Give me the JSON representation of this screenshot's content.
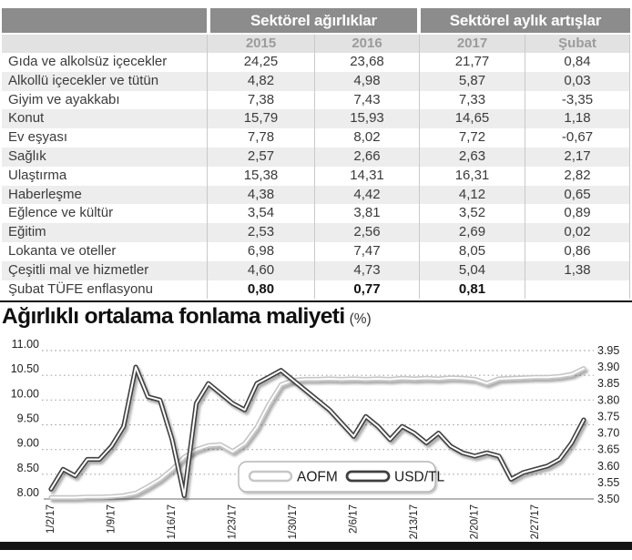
{
  "page": {
    "chart_title": "Ağırlıklı ortalama fonlama maliyeti",
    "chart_title_unit": "(%)"
  },
  "colors": {
    "header_bg": "#8c8c8c",
    "subheader_bg": "#e2e2e2",
    "subheader_text": "#9b9b9b",
    "stripe": "#ededed",
    "sep": "#c9c9c9",
    "text": "#3b3b3b",
    "bar": "#151515",
    "aofm_line": "#c6c6c6",
    "usdtl_line": "#3f3f3f",
    "grid_line": "#a8a8a8",
    "axis_line": "#8a8a8a",
    "axis_text": "#222222"
  },
  "chart_data": [
    {
      "type": "table",
      "col_groups": [
        "Sektörel ağırlıklar",
        "Sektörel aylık artışlar"
      ],
      "columns": [
        "2015",
        "2016",
        "2017",
        "Şubat"
      ],
      "rows": [
        {
          "label": "Gıda ve alkolsüz içecekler",
          "values": [
            "24,25",
            "23,68",
            "21,77",
            "0,84"
          ],
          "bold": false
        },
        {
          "label": "Alkollü içecekler ve tütün",
          "values": [
            "4,82",
            "4,98",
            "5,87",
            "0,03"
          ],
          "bold": false
        },
        {
          "label": "Giyim ve ayakkabı",
          "values": [
            "7,38",
            "7,43",
            "7,33",
            "-3,35"
          ],
          "bold": false
        },
        {
          "label": "Konut",
          "values": [
            "15,79",
            "15,93",
            "14,65",
            "1,18"
          ],
          "bold": false
        },
        {
          "label": "Ev eşyası",
          "values": [
            "7,78",
            "8,02",
            "7,72",
            "-0,67"
          ],
          "bold": false
        },
        {
          "label": "Sağlık",
          "values": [
            "2,57",
            "2,66",
            "2,63",
            "2,17"
          ],
          "bold": false
        },
        {
          "label": "Ulaştırma",
          "values": [
            "15,38",
            "14,31",
            "16,31",
            "2,82"
          ],
          "bold": false
        },
        {
          "label": "Haberleşme",
          "values": [
            "4,38",
            "4,42",
            "4,12",
            "0,65"
          ],
          "bold": false
        },
        {
          "label": "Eğlence ve kültür",
          "values": [
            "3,54",
            "3,81",
            "3,52",
            "0,89"
          ],
          "bold": false
        },
        {
          "label": "Eğitim",
          "values": [
            "2,53",
            "2,56",
            "2,69",
            "0,02"
          ],
          "bold": false
        },
        {
          "label": "Lokanta ve oteller",
          "values": [
            "6,98",
            "7,47",
            "8,05",
            "0,86"
          ],
          "bold": false
        },
        {
          "label": "Çeşitli mal ve hizmetler",
          "values": [
            "4,60",
            "4,73",
            "5,04",
            "1,38"
          ],
          "bold": false
        },
        {
          "label": "Şubat TÜFE enflasyonu",
          "values": [
            "0,80",
            "0,77",
            "0,81",
            ""
          ],
          "bold": true
        }
      ]
    },
    {
      "type": "line",
      "title": "Ağırlıklı ortalama fonlama maliyeti (%)",
      "grid": "horizontal-dotted",
      "legend_position": "inside-bottom-center",
      "x_tick_every": 5,
      "x": [
        "1/2/17",
        "1/3/17",
        "1/4/17",
        "1/5/17",
        "1/6/17",
        "1/9/17",
        "1/10/17",
        "1/11/17",
        "1/12/17",
        "1/13/17",
        "1/16/17",
        "1/17/17",
        "1/18/17",
        "1/19/17",
        "1/20/17",
        "1/23/17",
        "1/24/17",
        "1/25/17",
        "1/26/17",
        "1/27/17",
        "1/30/17",
        "1/31/17",
        "2/1/17",
        "2/2/17",
        "2/3/17",
        "2/6/17",
        "2/7/17",
        "2/8/17",
        "2/9/17",
        "2/10/17",
        "2/13/17",
        "2/14/17",
        "2/15/17",
        "2/16/17",
        "2/17/17",
        "2/20/17",
        "2/21/17",
        "2/22/17",
        "2/23/17",
        "2/24/17",
        "2/27/17",
        "2/28/17",
        "3/1/17",
        "3/2/17",
        "3/3/17"
      ],
      "left_axis": {
        "min": 8.0,
        "max": 11.0,
        "step": 0.5
      },
      "right_axis": {
        "min": 3.5,
        "max": 3.95,
        "step": 0.05
      },
      "series": [
        {
          "name": "AOFM",
          "axis": "left",
          "color": "#c6c6c6",
          "values": [
            8.03,
            8.03,
            8.03,
            8.04,
            8.04,
            8.05,
            8.07,
            8.12,
            8.25,
            8.4,
            8.6,
            8.85,
            9.0,
            9.08,
            9.1,
            8.96,
            9.12,
            9.45,
            9.92,
            10.31,
            10.4,
            10.42,
            10.42,
            10.43,
            10.42,
            10.43,
            10.42,
            10.43,
            10.42,
            10.44,
            10.43,
            10.44,
            10.43,
            10.45,
            10.44,
            10.42,
            10.34,
            10.43,
            10.44,
            10.45,
            10.46,
            10.46,
            10.48,
            10.52,
            10.64
          ]
        },
        {
          "name": "USD/TL",
          "axis": "right",
          "color": "#3f3f3f",
          "values": [
            3.53,
            3.59,
            3.57,
            3.62,
            3.62,
            3.66,
            3.72,
            3.9,
            3.81,
            3.8,
            3.68,
            3.51,
            3.79,
            3.85,
            3.82,
            3.79,
            3.77,
            3.85,
            3.87,
            3.89,
            3.86,
            3.83,
            3.8,
            3.77,
            3.73,
            3.69,
            3.75,
            3.72,
            3.68,
            3.72,
            3.7,
            3.67,
            3.7,
            3.66,
            3.64,
            3.63,
            3.64,
            3.63,
            3.56,
            3.58,
            3.59,
            3.6,
            3.62,
            3.67,
            3.74
          ]
        }
      ]
    }
  ]
}
